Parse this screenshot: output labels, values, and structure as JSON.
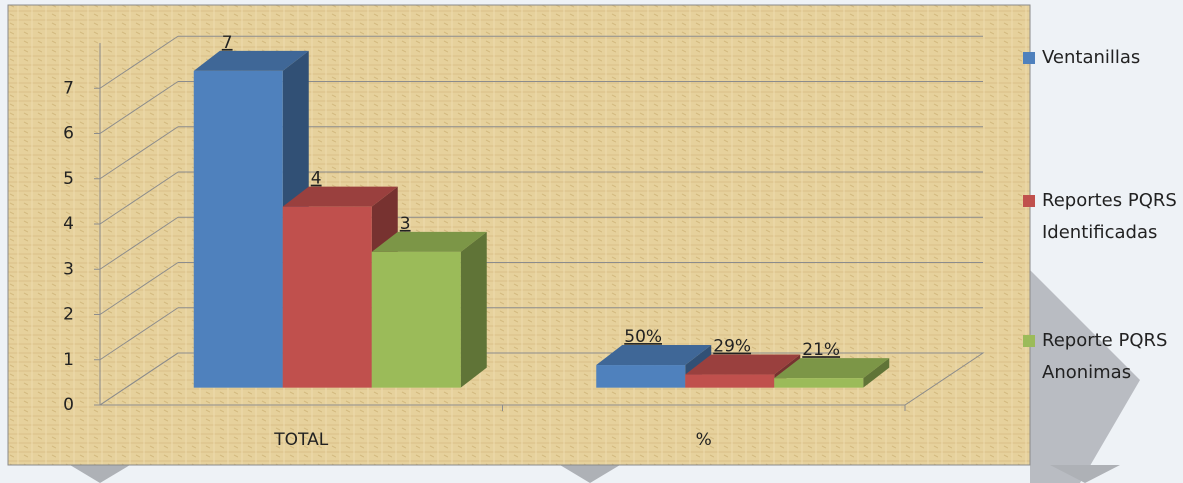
{
  "chart_data": {
    "type": "bar3d",
    "categories": [
      "TOTAL",
      "%"
    ],
    "series": [
      {
        "name": "Ventanillas",
        "color": "#4f81bd",
        "values": [
          7,
          0.5
        ],
        "value_labels": [
          "7",
          "50%"
        ]
      },
      {
        "name": "Reportes PQRS Identificadas",
        "color": "#c0504d",
        "values": [
          4,
          0.29
        ],
        "value_labels": [
          "4",
          "29%"
        ]
      },
      {
        "name": "Reporte PQRS Anonimas",
        "color": "#9bbb59",
        "values": [
          3,
          0.21
        ],
        "value_labels": [
          "3",
          "21%"
        ]
      }
    ],
    "ylim": [
      0,
      8
    ],
    "yticks": [
      0,
      1,
      2,
      3,
      4,
      5,
      6,
      7
    ],
    "grid": true,
    "legend": "right"
  }
}
